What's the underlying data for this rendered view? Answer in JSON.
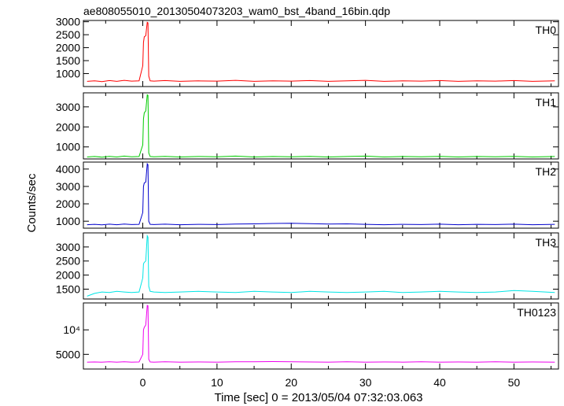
{
  "chart_data": {
    "type": "line",
    "title": "ae808055010_20130504073203_wam0_bst_4band_16bin.qdp",
    "xlabel": "Time [sec] 0 = 2013/05/04 07:32:03.063",
    "ylabel": "Counts/sec",
    "xlim": [
      -8,
      56
    ],
    "x_ticks": [
      0,
      10,
      20,
      30,
      40,
      50
    ],
    "x_tick_labels": [
      "0",
      "10",
      "20",
      "30",
      "40",
      "50"
    ],
    "grid": false,
    "panels": [
      {
        "name": "TH0",
        "color": "#ff0000",
        "ylim": [
          500,
          3050
        ],
        "y_ticks": [
          1000,
          1500,
          2000,
          2500,
          3000
        ],
        "y_tick_labels": [
          "1000",
          "1500",
          "2000",
          "2500",
          "3000"
        ],
        "x": [
          -7.5,
          -6.5,
          -5.5,
          -4.5,
          -3.5,
          -2.5,
          -1.5,
          -0.5,
          0.0,
          0.1,
          0.2,
          0.4,
          0.6,
          0.7,
          0.8,
          1.0,
          1.5,
          3,
          5,
          7.5,
          10,
          12.5,
          15,
          17.5,
          20,
          22.5,
          25,
          27.5,
          30,
          32.5,
          35,
          37.5,
          40,
          42.5,
          45,
          47.5,
          50,
          52.5,
          55.5
        ],
        "values": [
          700,
          720,
          690,
          730,
          700,
          740,
          710,
          720,
          1300,
          2200,
          2420,
          2460,
          2980,
          2960,
          900,
          720,
          710,
          730,
          700,
          720,
          710,
          740,
          700,
          720,
          710,
          730,
          700,
          720,
          740,
          700,
          720,
          710,
          730,
          700,
          720,
          710,
          730,
          700,
          720
        ]
      },
      {
        "name": "TH1",
        "color": "#00cc00",
        "ylim": [
          400,
          3700
        ],
        "y_ticks": [
          1000,
          2000,
          3000
        ],
        "y_tick_labels": [
          "1000",
          "2000",
          "3000"
        ],
        "x": [
          -7.5,
          -6.5,
          -5.5,
          -4.5,
          -3.5,
          -2.5,
          -1.5,
          -0.5,
          0.0,
          0.1,
          0.2,
          0.4,
          0.6,
          0.7,
          0.8,
          1.0,
          1.5,
          3,
          5,
          7.5,
          10,
          12.5,
          15,
          17.5,
          20,
          22.5,
          25,
          27.5,
          30,
          32.5,
          35,
          37.5,
          40,
          42.5,
          45,
          47.5,
          50,
          52.5,
          55.5
        ],
        "values": [
          500,
          520,
          490,
          530,
          500,
          540,
          510,
          520,
          1100,
          2400,
          2700,
          2800,
          3600,
          3580,
          700,
          520,
          510,
          530,
          500,
          520,
          510,
          540,
          500,
          520,
          510,
          530,
          500,
          520,
          540,
          500,
          520,
          510,
          530,
          500,
          520,
          510,
          530,
          500,
          520
        ]
      },
      {
        "name": "TH2",
        "color": "#0000cc",
        "ylim": [
          600,
          4400
        ],
        "y_ticks": [
          1000,
          2000,
          3000,
          4000
        ],
        "y_tick_labels": [
          "1000",
          "2000",
          "3000",
          "4000"
        ],
        "x": [
          -7.5,
          -6.5,
          -5.5,
          -4.5,
          -3.5,
          -2.5,
          -1.5,
          -0.5,
          0.0,
          0.1,
          0.2,
          0.4,
          0.6,
          0.7,
          0.8,
          1.0,
          1.5,
          3,
          5,
          7.5,
          10,
          12.5,
          15,
          17.5,
          20,
          22.5,
          25,
          27.5,
          30,
          32.5,
          35,
          37.5,
          40,
          42.5,
          45,
          47.5,
          50,
          52.5,
          55.5
        ],
        "values": [
          800,
          820,
          790,
          830,
          800,
          840,
          810,
          820,
          1500,
          3000,
          3200,
          3250,
          4300,
          4250,
          1000,
          820,
          810,
          830,
          800,
          820,
          810,
          840,
          850,
          870,
          880,
          860,
          840,
          850,
          820,
          800,
          820,
          810,
          830,
          800,
          820,
          810,
          830,
          800,
          820
        ]
      },
      {
        "name": "TH3",
        "color": "#00e5e5",
        "ylim": [
          1150,
          3500
        ],
        "y_ticks": [
          1500,
          2000,
          2500,
          3000
        ],
        "y_tick_labels": [
          "1500",
          "2000",
          "2500",
          "3000"
        ],
        "x": [
          -7.5,
          -6.5,
          -5.5,
          -4.5,
          -3.5,
          -2.5,
          -1.5,
          -0.5,
          0.0,
          0.1,
          0.2,
          0.4,
          0.6,
          0.7,
          0.8,
          1.0,
          1.5,
          3,
          5,
          7.5,
          10,
          12.5,
          15,
          17.5,
          20,
          22.5,
          25,
          27.5,
          30,
          32.5,
          35,
          37.5,
          40,
          42.5,
          45,
          47.5,
          50,
          52.5,
          55.5
        ],
        "values": [
          1250,
          1350,
          1400,
          1380,
          1420,
          1400,
          1380,
          1400,
          1900,
          2400,
          2450,
          2500,
          3400,
          3350,
          1600,
          1420,
          1400,
          1380,
          1400,
          1420,
          1400,
          1380,
          1420,
          1400,
          1380,
          1420,
          1400,
          1380,
          1400,
          1420,
          1380,
          1400,
          1420,
          1400,
          1380,
          1400,
          1450,
          1420,
          1380
        ]
      },
      {
        "name": "TH0123",
        "color": "#ee00ee",
        "ylim": [
          2000,
          15500
        ],
        "y_ticks": [
          5000,
          10000
        ],
        "y_tick_labels": [
          "5000",
          "10⁴"
        ],
        "x": [
          -7.5,
          -6.5,
          -5.5,
          -4.5,
          -3.5,
          -2.5,
          -1.5,
          -0.5,
          0.0,
          0.1,
          0.2,
          0.4,
          0.6,
          0.7,
          0.8,
          1.0,
          1.5,
          3,
          5,
          7.5,
          10,
          12.5,
          15,
          17.5,
          20,
          22.5,
          25,
          27.5,
          30,
          32.5,
          35,
          37.5,
          40,
          42.5,
          45,
          47.5,
          50,
          52.5,
          55.5
        ],
        "values": [
          3400,
          3450,
          3400,
          3500,
          3420,
          3480,
          3400,
          3450,
          5000,
          10000,
          10500,
          11000,
          15000,
          14900,
          4000,
          3450,
          3420,
          3480,
          3400,
          3450,
          3420,
          3480,
          3500,
          3520,
          3480,
          3450,
          3420,
          3480,
          3400,
          3450,
          3420,
          3480,
          3400,
          3450,
          3420,
          3480,
          3400,
          3450,
          3420
        ]
      }
    ]
  }
}
